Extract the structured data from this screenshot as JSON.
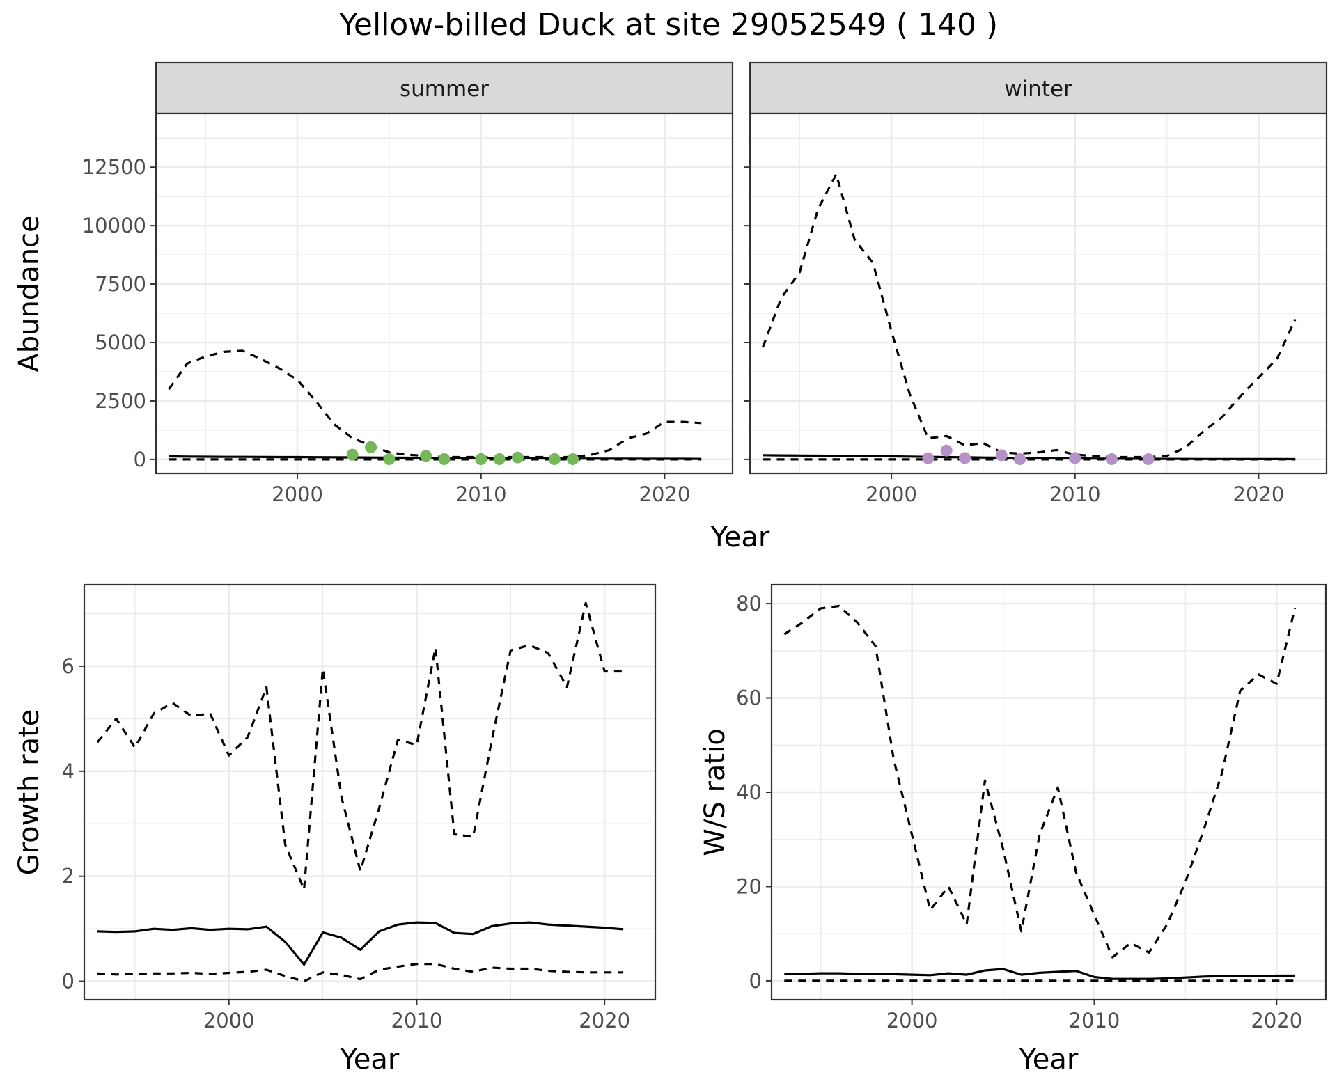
{
  "figure": {
    "title": "Yellow-billed Duck at site 29052549 ( 140 )"
  },
  "colors": {
    "summer_points": "#74b85a",
    "winter_points": "#b591c8",
    "lines": "#000000",
    "strip_bg": "#d9d9d9",
    "grid": "#ebebeb"
  },
  "chart_data": [
    {
      "type": "line",
      "panel": "abundance",
      "facets": [
        "summer",
        "winter"
      ],
      "xlabel": "Year",
      "ylabel": "Abundance",
      "xlim": [
        1992.3,
        2023.7
      ],
      "ylim": [
        -600,
        14800
      ],
      "xticks": [
        2000,
        2010,
        2020
      ],
      "yticks": [
        0,
        2500,
        5000,
        7500,
        10000,
        12500
      ],
      "grid": true,
      "summer": {
        "x": [
          1993,
          1994,
          1995,
          1996,
          1997,
          1998,
          1999,
          2000,
          2001,
          2002,
          2003,
          2004,
          2005,
          2006,
          2007,
          2008,
          2009,
          2010,
          2011,
          2012,
          2013,
          2014,
          2015,
          2016,
          2017,
          2018,
          2019,
          2020,
          2021,
          2022
        ],
        "upper": [
          3000,
          4100,
          4400,
          4600,
          4650,
          4300,
          3900,
          3400,
          2500,
          1500,
          900,
          600,
          300,
          200,
          150,
          100,
          100,
          100,
          100,
          100,
          100,
          100,
          100,
          200,
          400,
          900,
          1100,
          1600,
          1600,
          1550
        ],
        "fit": [
          130,
          120,
          115,
          110,
          110,
          105,
          100,
          100,
          95,
          90,
          85,
          80,
          75,
          70,
          65,
          60,
          55,
          50,
          50,
          45,
          40,
          40,
          35,
          35,
          30,
          30,
          25,
          25,
          25,
          20
        ],
        "lower": [
          0,
          0,
          0,
          0,
          0,
          0,
          0,
          0,
          0,
          0,
          0,
          0,
          0,
          0,
          0,
          0,
          0,
          0,
          0,
          0,
          0,
          0,
          0,
          0,
          0,
          0,
          0,
          0,
          0,
          0
        ],
        "points": [
          {
            "x": 2003,
            "y": 200
          },
          {
            "x": 2004,
            "y": 520
          },
          {
            "x": 2005,
            "y": 10
          },
          {
            "x": 2007,
            "y": 150
          },
          {
            "x": 2008,
            "y": 10
          },
          {
            "x": 2010,
            "y": 10
          },
          {
            "x": 2011,
            "y": 10
          },
          {
            "x": 2012,
            "y": 80
          },
          {
            "x": 2014,
            "y": 10
          },
          {
            "x": 2015,
            "y": 10
          }
        ]
      },
      "winter": {
        "x": [
          1993,
          1994,
          1995,
          1996,
          1997,
          1998,
          1999,
          2000,
          2001,
          2002,
          2003,
          2004,
          2005,
          2006,
          2007,
          2008,
          2009,
          2010,
          2011,
          2012,
          2013,
          2014,
          2015,
          2016,
          2017,
          2018,
          2019,
          2020,
          2021,
          2022
        ],
        "upper": [
          4800,
          6900,
          8000,
          10700,
          12200,
          9400,
          8400,
          5500,
          2800,
          900,
          1000,
          600,
          700,
          300,
          250,
          300,
          400,
          200,
          150,
          100,
          100,
          100,
          150,
          500,
          1200,
          1800,
          2700,
          3500,
          4300,
          6000
        ],
        "fit": [
          180,
          170,
          165,
          160,
          155,
          150,
          140,
          130,
          120,
          110,
          100,
          90,
          80,
          70,
          60,
          50,
          45,
          40,
          35,
          30,
          28,
          25,
          22,
          20,
          18,
          16,
          15,
          14,
          13,
          12
        ],
        "lower": [
          0,
          0,
          0,
          0,
          0,
          0,
          0,
          0,
          0,
          0,
          0,
          0,
          0,
          0,
          0,
          0,
          0,
          0,
          0,
          0,
          0,
          0,
          0,
          0,
          0,
          0,
          0,
          0,
          0,
          0
        ],
        "points": [
          {
            "x": 2002,
            "y": 50
          },
          {
            "x": 2003,
            "y": 380
          },
          {
            "x": 2004,
            "y": 60
          },
          {
            "x": 2006,
            "y": 180
          },
          {
            "x": 2007,
            "y": 10
          },
          {
            "x": 2010,
            "y": 60
          },
          {
            "x": 2012,
            "y": 10
          },
          {
            "x": 2014,
            "y": 10
          }
        ]
      }
    },
    {
      "type": "line",
      "panel": "growth",
      "xlabel": "Year",
      "ylabel": "Growth rate",
      "xlim": [
        1992.3,
        2022.7
      ],
      "ylim": [
        -0.35,
        7.55
      ],
      "xticks": [
        2000,
        2010,
        2020
      ],
      "yticks": [
        0,
        2,
        4,
        6
      ],
      "grid": true,
      "x": [
        1993,
        1994,
        1995,
        1996,
        1997,
        1998,
        1999,
        2000,
        2001,
        2002,
        2003,
        2004,
        2005,
        2006,
        2007,
        2008,
        2009,
        2010,
        2011,
        2012,
        2013,
        2014,
        2015,
        2016,
        2017,
        2018,
        2019,
        2020,
        2021
      ],
      "upper": [
        4.55,
        5.0,
        4.45,
        5.1,
        5.3,
        5.05,
        5.1,
        4.3,
        4.65,
        5.6,
        2.6,
        1.75,
        5.95,
        3.5,
        2.1,
        3.3,
        4.6,
        4.5,
        6.35,
        2.8,
        2.75,
        4.6,
        6.3,
        6.4,
        6.25,
        5.6,
        7.2,
        5.9,
        5.9
      ],
      "fit": [
        0.95,
        0.94,
        0.95,
        1.0,
        0.98,
        1.01,
        0.98,
        1.0,
        0.99,
        1.04,
        0.75,
        0.32,
        0.93,
        0.83,
        0.6,
        0.95,
        1.08,
        1.12,
        1.11,
        0.92,
        0.9,
        1.05,
        1.1,
        1.12,
        1.08,
        1.06,
        1.04,
        1.02,
        0.99
      ],
      "lower": [
        0.15,
        0.13,
        0.14,
        0.15,
        0.15,
        0.16,
        0.14,
        0.16,
        0.18,
        0.22,
        0.1,
        0.0,
        0.17,
        0.12,
        0.04,
        0.22,
        0.28,
        0.33,
        0.33,
        0.24,
        0.18,
        0.26,
        0.24,
        0.24,
        0.2,
        0.18,
        0.17,
        0.17,
        0.17
      ]
    },
    {
      "type": "line",
      "panel": "ws_ratio",
      "xlabel": "Year",
      "ylabel": "W/S ratio",
      "xlim": [
        1992.3,
        2022.7
      ],
      "ylim": [
        -4,
        84
      ],
      "xticks": [
        2000,
        2010,
        2020
      ],
      "yticks": [
        0,
        20,
        40,
        60,
        80
      ],
      "grid": true,
      "x": [
        1993,
        1994,
        1995,
        1996,
        1997,
        1998,
        1999,
        2000,
        2001,
        2002,
        2003,
        2004,
        2005,
        2006,
        2007,
        2008,
        2009,
        2010,
        2011,
        2012,
        2013,
        2014,
        2015,
        2016,
        2017,
        2018,
        2019,
        2020,
        2021
      ],
      "upper": [
        73.5,
        76,
        79,
        79.5,
        76,
        71,
        47,
        31,
        15,
        20,
        12,
        42.5,
        28,
        10.5,
        31,
        41,
        23,
        14,
        5,
        8,
        6,
        12,
        21,
        32,
        44,
        61.5,
        65,
        63,
        79
      ],
      "fit": [
        1.5,
        1.5,
        1.6,
        1.6,
        1.5,
        1.5,
        1.4,
        1.3,
        1.2,
        1.6,
        1.3,
        2.2,
        2.5,
        1.3,
        1.7,
        1.9,
        2.1,
        0.8,
        0.4,
        0.4,
        0.4,
        0.5,
        0.7,
        0.9,
        1.0,
        1.0,
        1.0,
        1.1,
        1.1
      ],
      "lower": [
        0,
        0,
        0,
        0,
        0,
        0,
        0,
        0,
        0,
        0,
        0,
        0,
        0,
        0,
        0,
        0,
        0,
        0,
        0,
        0,
        0,
        0,
        0,
        0,
        0,
        0,
        0,
        0,
        0
      ]
    }
  ]
}
